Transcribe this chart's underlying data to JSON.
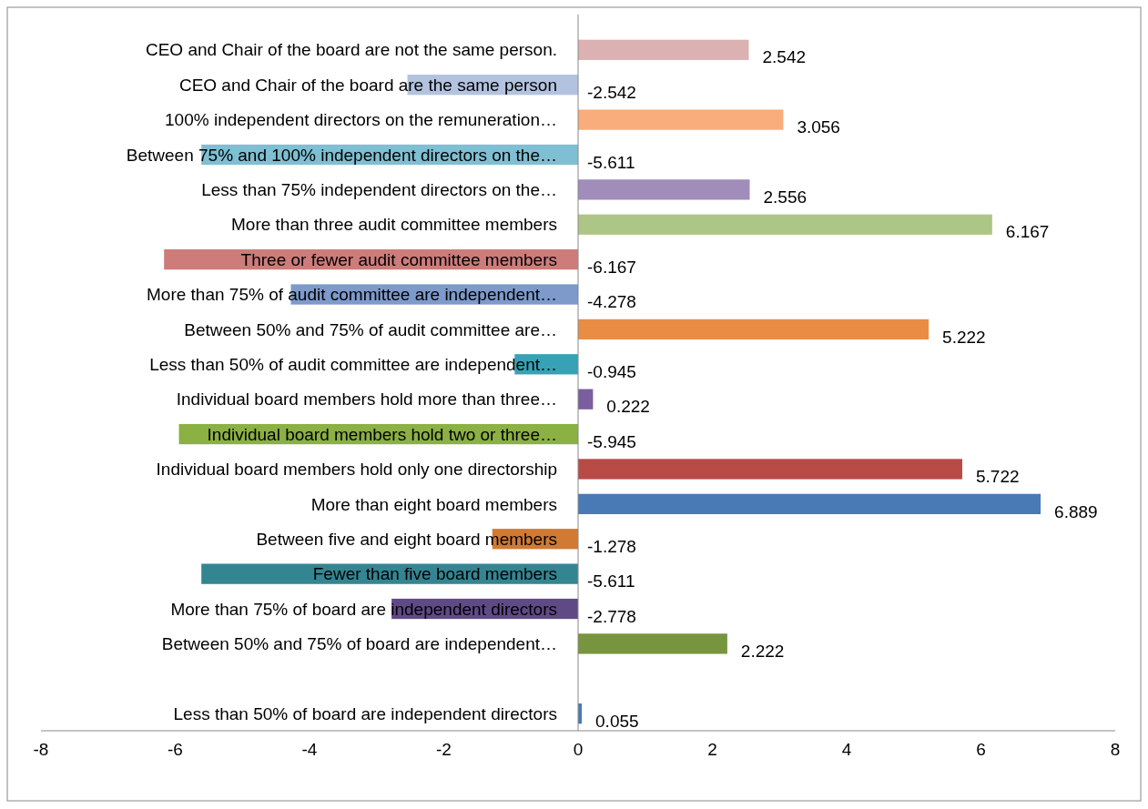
{
  "chart_data": {
    "type": "bar",
    "orientation": "horizontal",
    "data_labels": true,
    "grid": false,
    "categories": [
      "CEO and Chair of the board are not the same person.",
      "CEO and Chair of the board are the same person",
      "100% independent directors on the remuneration…",
      "Between 75% and 100% independent directors on the…",
      "Less than 75% independent directors on the…",
      "More than three audit committee members",
      "Three or fewer audit committee members",
      "More than 75% of audit committee are independent…",
      "Between 50% and 75% of audit committee are…",
      "Less than 50% of audit committee are independent…",
      "Individual board members hold more than three…",
      "Individual board members hold two or three…",
      "Individual board members hold only one directorship",
      "More than eight board members",
      "Between five and eight board members",
      "Fewer than five board members",
      "More than 75% of board are independent directors",
      "Between 50% and 75% of board are independent…",
      null,
      "Less than 50% of board are independent directors"
    ],
    "values": [
      2.542,
      -2.542,
      3.056,
      -5.611,
      2.556,
      6.167,
      -6.167,
      -4.278,
      5.222,
      -0.945,
      0.222,
      -5.945,
      5.722,
      6.889,
      -1.278,
      -5.611,
      -2.778,
      2.222,
      null,
      0.055
    ],
    "colors": [
      "#dbb1b1",
      "#b3c3df",
      "#f9ac7c",
      "#7fbfd3",
      "#a08dba",
      "#adc686",
      "#cd7c7a",
      "#7d9acb",
      "#e98d45",
      "#38a1b6",
      "#7b5ea0",
      "#8bb043",
      "#b94b47",
      "#4a7ab5",
      "#d07a34",
      "#348592",
      "#5f4a86",
      "#77943e",
      null,
      "#4a7ab5"
    ],
    "xlim": [
      -8,
      8
    ],
    "xticks": [
      -8,
      -6,
      -4,
      -2,
      0,
      2,
      4,
      6,
      8
    ]
  }
}
